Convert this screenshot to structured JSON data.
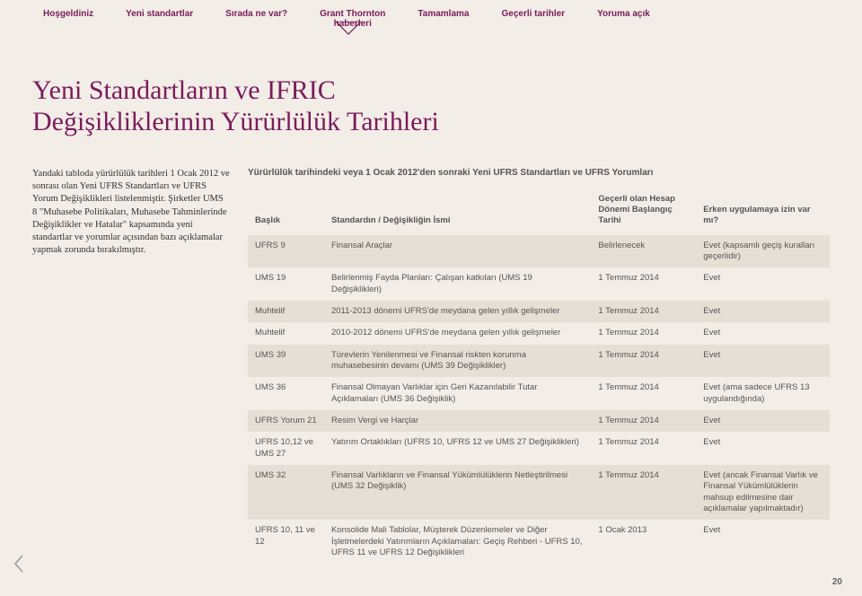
{
  "nav": {
    "items": [
      "Hoşgeldiniz",
      "Yeni standartlar",
      "Sırada ne var?",
      "Grant Thornton haberleri",
      "Tamamlama",
      "Geçerli tarihler",
      "Yoruma açık"
    ]
  },
  "title": {
    "line1": "Yeni Standartların ve IFRIC",
    "line2": "Değişikliklerinin Yürürlülük Tarihleri"
  },
  "intro": "Yandaki tabloda yürürlülük tarihleri 1 Ocak 2012 ve sonrası olan Yeni UFRS Standartları ve UFRS Yorum Değişiklikleri listelenmiştir. Şirketler UMS 8 \"Muhasebe Politikaları, Muhasebe Tahminlerinde Değişiklikler ve Hatalar\" kapsamında yeni standartlar ve yorumlar açısından bazı açıklamalar yapmak zorunda bırakılmıştır.",
  "table": {
    "title": "Yürürlülük tarihindeki veya 1 Ocak 2012'den sonraki Yeni UFRS Standartları ve UFRS Yorumları",
    "headers": {
      "c1": "Başlık",
      "c2": "Standardın / Değişikliğin İsmi",
      "c3": "Geçerli olan Hesap Dönemi Başlangıç Tarihi",
      "c4": "Erken uygulamaya izin var mı?"
    },
    "rows": [
      {
        "c1": "UFRS 9",
        "c2": "Finansal Araçlar",
        "c3": "Belirlenecek",
        "c4": "Evet (kapsamlı geçiş kuralları geçerlidir)"
      },
      {
        "c1": "UMS 19",
        "c2": "Belirlenmiş Fayda Planları: Çalışan katkıları (UMS 19 Değişiklikleri)",
        "c3": "1 Temmuz 2014",
        "c4": "Evet"
      },
      {
        "c1": "Muhtelif",
        "c2": "2011-2013 dönemi UFRS'de meydana gelen yıllık gelişmeler",
        "c3": "1 Temmuz 2014",
        "c4": "Evet"
      },
      {
        "c1": "Muhtelif",
        "c2": "2010-2012 dönemi UFRS'de meydana gelen yıllık gelişmeler",
        "c3": "1 Temmuz 2014",
        "c4": "Evet"
      },
      {
        "c1": "UMS 39",
        "c2": "Türevlerin Yenilenmesi ve Finansal riskten korunma muhasebesinin devamı (UMS 39 Değişiklikler)",
        "c3": "1 Temmuz 2014",
        "c4": "Evet"
      },
      {
        "c1": "UMS 36",
        "c2": "Finansal Olmayan Varlıklar için Geri Kazanılabilir Tutar Açıklamaları (UMS 36 Değişiklik)",
        "c3": "1 Temmuz 2014",
        "c4": "Evet (ama sadece UFRS 13 uygulandığında)"
      },
      {
        "c1": "UFRS Yorum 21",
        "c2": "Resim Vergi ve Harçlar",
        "c3": "1 Temmuz 2014",
        "c4": "Evet"
      },
      {
        "c1": "UFRS 10,12 ve UMS 27",
        "c2": "Yatırım Ortaklıkları (UFRS 10, UFRS 12 ve UMS 27 Değişiklikleri)",
        "c3": "1 Temmuz 2014",
        "c4": "Evet"
      },
      {
        "c1": "UMS 32",
        "c2": "Finansal Varlıkların ve Finansal Yükümlülüklerin Netleştirilmesi (UMS 32 Değişiklik)",
        "c3": "1 Temmuz 2014",
        "c4": "Evet (ancak Finansal Varlık ve Finansal Yükümlülüklerin mahsup edilmesine dair açıklamalar yapılmaktadır)"
      },
      {
        "c1": "UFRS 10, 11 ve 12",
        "c2": "Konsolide Mali Tablolar, Müşterek Düzenlemeler ve Diğer İşletmelerdeki Yatırımların Açıklamaları: Geçiş Rehberi - UFRS 10, UFRS 11 ve UFRS 12 Değişiklikleri",
        "c3": "1 Ocak 2013",
        "c4": "Evet"
      }
    ],
    "stripe_bg": "#e6dfd5",
    "font_size": 9.5
  },
  "colors": {
    "brand": "#7a1b5c",
    "page_bg": "#f2ede6",
    "text_body": "#555555"
  },
  "page_number": "20"
}
